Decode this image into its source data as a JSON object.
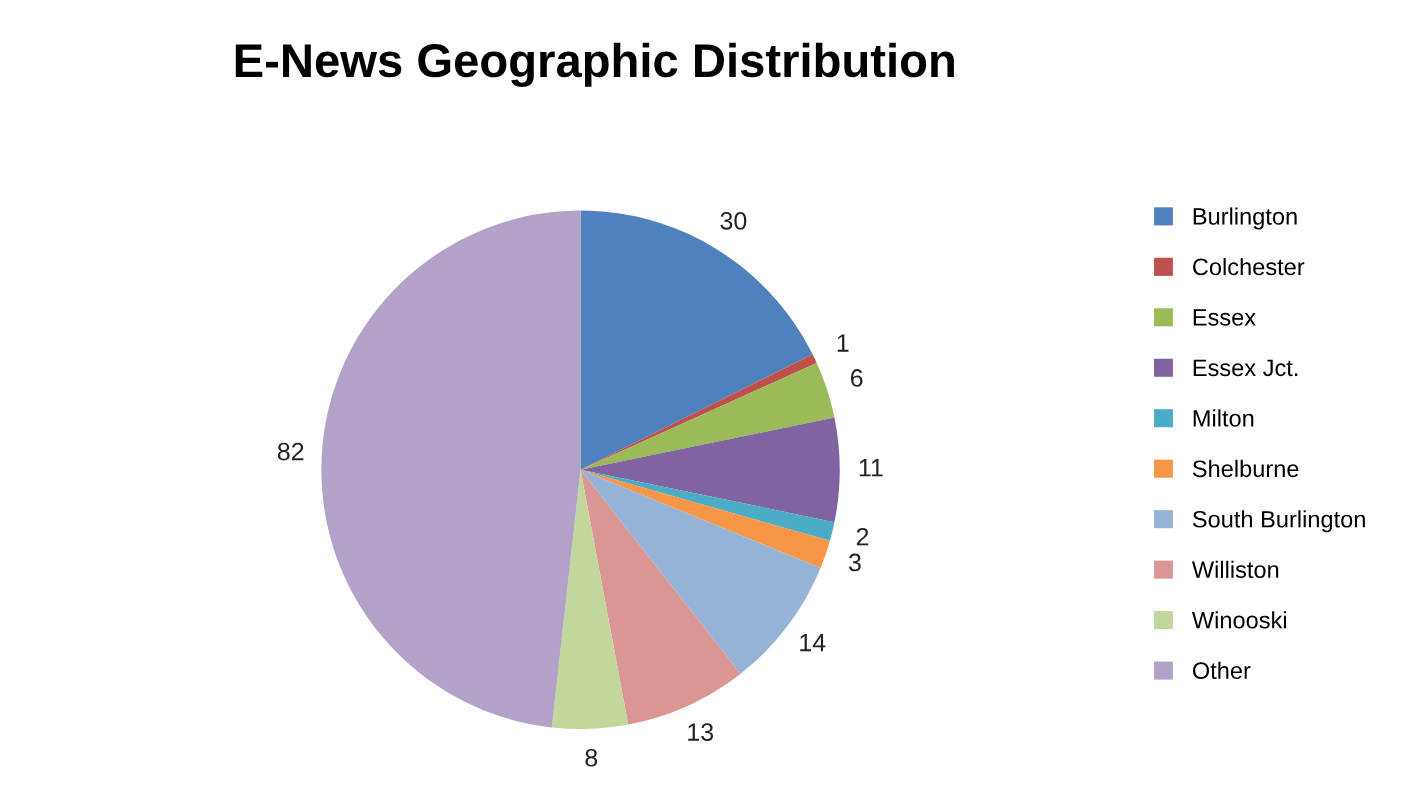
{
  "chart_data": {
    "type": "pie",
    "title": "E-News Geographic Distribution",
    "categories": [
      "Burlington",
      "Colchester",
      "Essex",
      "Essex Jct.",
      "Milton",
      "Shelburne",
      "South Burlington",
      "Williston",
      "Winooski",
      "Other"
    ],
    "values": [
      30,
      1,
      6,
      11,
      2,
      3,
      14,
      13,
      8,
      82
    ],
    "colors": [
      "#4f81bd",
      "#c0504d",
      "#9bbb59",
      "#8064a2",
      "#4bacc6",
      "#f79646",
      "#95b3d7",
      "#da9694",
      "#c3d69b",
      "#b3a2c7"
    ],
    "data_labels": true,
    "legend": "right"
  }
}
